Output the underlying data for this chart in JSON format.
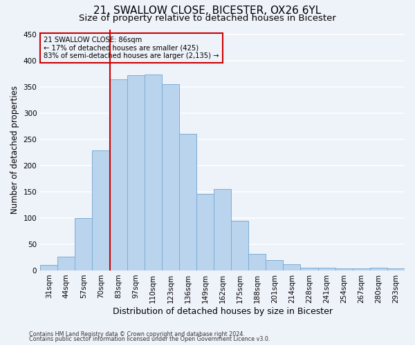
{
  "title_line1": "21, SWALLOW CLOSE, BICESTER, OX26 6YL",
  "title_line2": "Size of property relative to detached houses in Bicester",
  "xlabel": "Distribution of detached houses by size in Bicester",
  "ylabel": "Number of detached properties",
  "categories": [
    "31sqm",
    "44sqm",
    "57sqm",
    "70sqm",
    "83sqm",
    "97sqm",
    "110sqm",
    "123sqm",
    "136sqm",
    "149sqm",
    "162sqm",
    "175sqm",
    "188sqm",
    "201sqm",
    "214sqm",
    "228sqm",
    "241sqm",
    "254sqm",
    "267sqm",
    "280sqm",
    "293sqm"
  ],
  "values": [
    10,
    26,
    100,
    229,
    365,
    372,
    374,
    355,
    260,
    146,
    155,
    95,
    32,
    20,
    12,
    5,
    5,
    4,
    4,
    5,
    4
  ],
  "bar_color": "#bad4ee",
  "bar_edge_color": "#7aadd4",
  "vline_x_index": 4,
  "vline_color": "#cc0000",
  "annotation_line1": "21 SWALLOW CLOSE: 86sqm",
  "annotation_line2": "← 17% of detached houses are smaller (425)",
  "annotation_line3": "83% of semi-detached houses are larger (2,135) →",
  "annotation_box_color": "#cc0000",
  "ylim": [
    0,
    460
  ],
  "yticks": [
    0,
    50,
    100,
    150,
    200,
    250,
    300,
    350,
    400,
    450
  ],
  "footnote1": "Contains HM Land Registry data © Crown copyright and database right 2024.",
  "footnote2": "Contains public sector information licensed under the Open Government Licence v3.0.",
  "bg_color": "#eef2f9",
  "grid_color": "#ffffff",
  "title1_fontsize": 11,
  "title2_fontsize": 9.5,
  "xlabel_fontsize": 9,
  "ylabel_fontsize": 8.5,
  "tick_fontsize": 7.5,
  "footnote_fontsize": 5.8
}
